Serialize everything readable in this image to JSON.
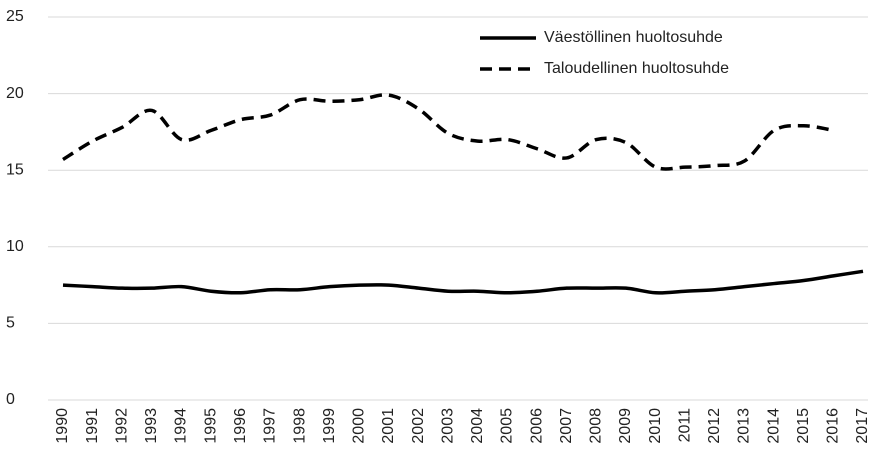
{
  "chart_data": {
    "type": "line",
    "categories": [
      "1990",
      "1991",
      "1992",
      "1993",
      "1994",
      "1995",
      "1996",
      "1997",
      "1998",
      "1999",
      "2000",
      "2001",
      "2002",
      "2003",
      "2004",
      "2005",
      "2006",
      "2007",
      "2008",
      "2009",
      "2010",
      "2011",
      "2012",
      "2013",
      "2014",
      "2015",
      "2016",
      "2017"
    ],
    "series": [
      {
        "name": "Väestöllinen huoltosuhde",
        "color": "#000000",
        "dash": "solid",
        "values": [
          7.5,
          7.4,
          7.3,
          7.3,
          7.4,
          7.1,
          7.0,
          7.2,
          7.2,
          7.4,
          7.5,
          7.5,
          7.3,
          7.1,
          7.1,
          7.0,
          7.1,
          7.3,
          7.3,
          7.3,
          7.0,
          7.1,
          7.2,
          7.4,
          7.6,
          7.8,
          8.1,
          8.4
        ]
      },
      {
        "name": "Taloudellinen huoltosuhde",
        "color": "#000000",
        "dash": "dashed",
        "values": [
          15.7,
          16.9,
          17.8,
          18.9,
          17.0,
          17.6,
          18.3,
          18.6,
          19.6,
          19.5,
          19.6,
          19.9,
          19.0,
          17.4,
          16.9,
          17.0,
          16.4,
          15.8,
          17.0,
          16.8,
          15.2,
          15.2,
          15.3,
          15.6,
          17.6,
          17.9,
          17.6,
          null
        ]
      }
    ],
    "ylim": [
      0,
      25
    ],
    "yticks": [
      0,
      5,
      10,
      15,
      20,
      25
    ],
    "grid": true,
    "legend": "upper right"
  }
}
